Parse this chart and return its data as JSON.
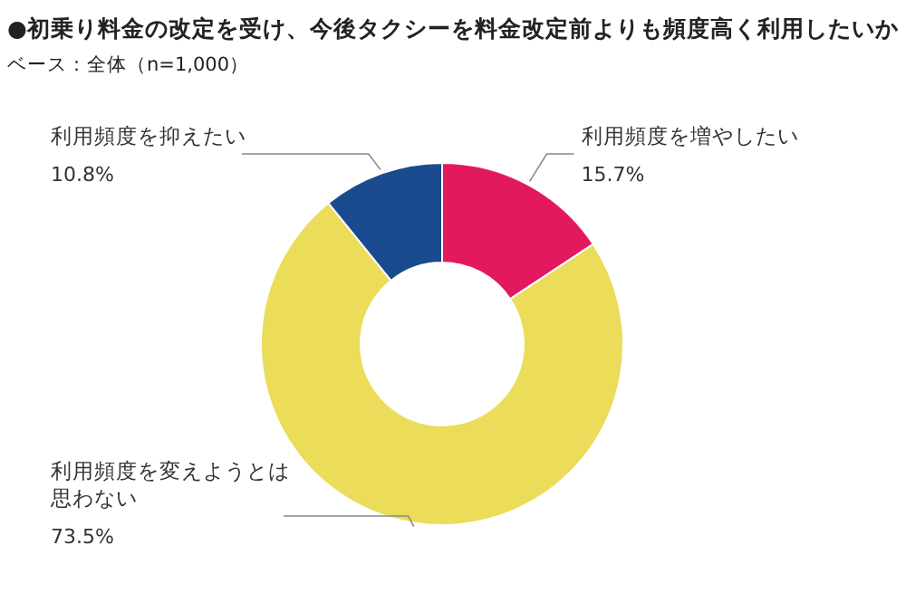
{
  "chart_data": {
    "type": "donut",
    "title": "●初乗り料金の改定を受け、今後タクシーを料金改定前よりも頻度高く利用したいか",
    "subtitle": "ベース：全体（n=1,000）",
    "categories": [
      "利用頻度を増やしたい",
      "利用頻度を変えようとは思わない",
      "利用頻度を抑えたい"
    ],
    "values": [
      15.7,
      73.5,
      10.8
    ],
    "colors": [
      "#e2195f",
      "#ebdc59",
      "#1a4b8e"
    ],
    "value_labels": [
      "15.7%",
      "73.5%",
      "10.8%"
    ]
  }
}
